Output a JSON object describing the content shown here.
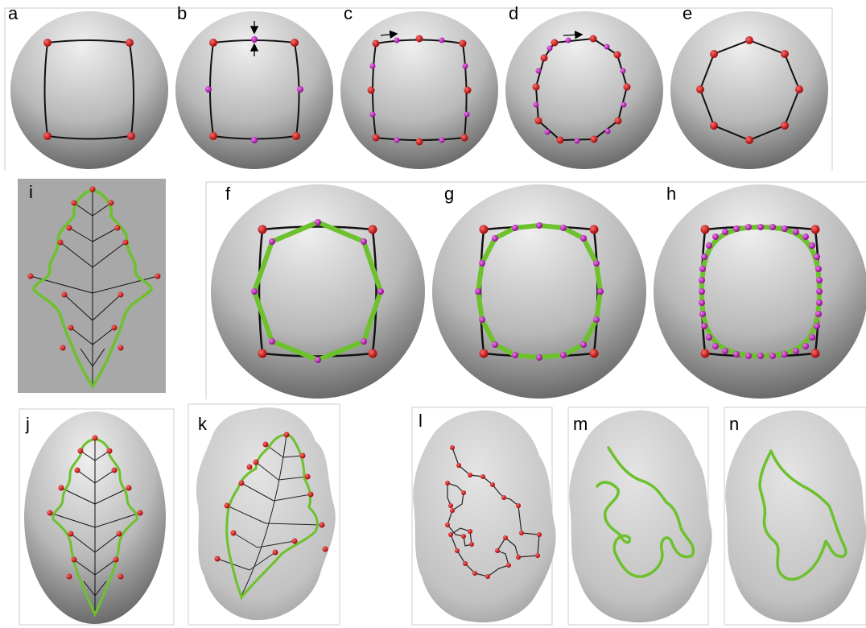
{
  "figure": {
    "panels": [
      {
        "id": "a",
        "label": "a"
      },
      {
        "id": "b",
        "label": "b"
      },
      {
        "id": "c",
        "label": "c"
      },
      {
        "id": "d",
        "label": "d"
      },
      {
        "id": "e",
        "label": "e"
      },
      {
        "id": "f",
        "label": "f"
      },
      {
        "id": "g",
        "label": "g"
      },
      {
        "id": "h",
        "label": "h"
      },
      {
        "id": "i",
        "label": "i"
      },
      {
        "id": "j",
        "label": "j"
      },
      {
        "id": "k",
        "label": "k"
      },
      {
        "id": "l",
        "label": "l"
      },
      {
        "id": "m",
        "label": "m"
      },
      {
        "id": "n",
        "label": "n"
      }
    ]
  },
  "colors": {
    "control_point": "#cc0000",
    "inserted_point": "#b000b0",
    "curve": "#111111",
    "fitted_curve": "#6cc12c",
    "leaf_background": "#a9a9a9",
    "surface_light": "#eeeeee",
    "surface_dark": "#4a4a4a"
  }
}
